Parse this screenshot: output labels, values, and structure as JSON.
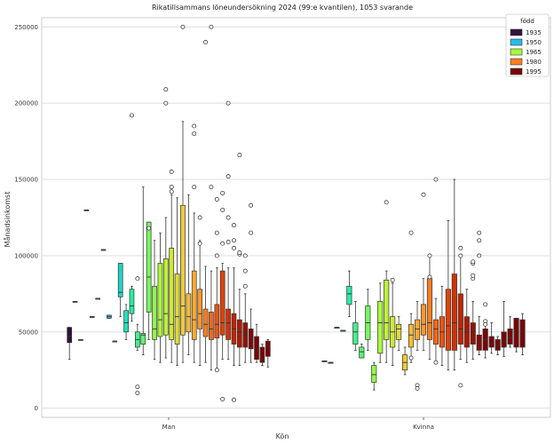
{
  "chart_data": {
    "type": "box",
    "title": "Rikatillsammans löneundersökning 2024 (99:e kvantilen), 1053 svarande",
    "xlabel": "Kön",
    "ylabel": "Månadsinkomst",
    "categories": [
      "Man",
      "Kvinna"
    ],
    "ylim": [
      -6000,
      256000
    ],
    "yticks": [
      0,
      50000,
      100000,
      150000,
      200000,
      250000
    ],
    "grid": "horizontal",
    "legend": {
      "title": "född",
      "position": "top-right",
      "entries": [
        {
          "label": "1935",
          "color": "#30123b"
        },
        {
          "label": "1950",
          "color": "#28bceb"
        },
        {
          "label": "1965",
          "color": "#a4fc3c"
        },
        {
          "label": "1980",
          "color": "#fb8022"
        },
        {
          "label": "1995",
          "color": "#7a0403"
        }
      ]
    },
    "color_ramp": [
      "#30123b",
      "#4145ab",
      "#4675ed",
      "#39a2fc",
      "#1bcfd4",
      "#24eca6",
      "#61fc6c",
      "#a4fc3c",
      "#d1e834",
      "#f3c63a",
      "#fe9b2d",
      "#f36315",
      "#d93806",
      "#b11901",
      "#7a0403"
    ],
    "series": [
      {
        "name": "Man",
        "groups": [
          {
            "c": 0.0,
            "q1": 43000,
            "med": 47000,
            "q3": 53000,
            "wlo": 32000,
            "whi": 53000,
            "out": []
          },
          {
            "c": 0.07,
            "q1": 70000,
            "med": 70000,
            "q3": 70000,
            "wlo": 70000,
            "whi": 70000,
            "out": []
          },
          {
            "c": 0.1,
            "q1": 45000,
            "med": 45000,
            "q3": 45000,
            "wlo": 45000,
            "whi": 45000,
            "out": []
          },
          {
            "c": 0.13,
            "q1": 130000,
            "med": 130000,
            "q3": 130000,
            "wlo": 130000,
            "whi": 130000,
            "out": []
          },
          {
            "c": 0.16,
            "q1": 60000,
            "med": 60000,
            "q3": 60000,
            "wlo": 60000,
            "whi": 60000,
            "out": []
          },
          {
            "c": 0.19,
            "q1": 72000,
            "med": 72000,
            "q3": 72000,
            "wlo": 72000,
            "whi": 72000,
            "out": []
          },
          {
            "c": 0.21,
            "q1": 104000,
            "med": 104000,
            "q3": 104000,
            "wlo": 104000,
            "whi": 104000,
            "out": []
          },
          {
            "c": 0.24,
            "q1": 59000,
            "med": 60000,
            "q3": 61000,
            "wlo": 59000,
            "whi": 61000,
            "out": []
          },
          {
            "c": 0.27,
            "q1": 44000,
            "med": 44000,
            "q3": 44000,
            "wlo": 44000,
            "whi": 44000,
            "out": []
          },
          {
            "c": 0.3,
            "q1": 73000,
            "med": 76000,
            "q3": 95000,
            "wlo": 60000,
            "whi": 95000,
            "out": []
          },
          {
            "c": 0.33,
            "q1": 50000,
            "med": 56000,
            "q3": 64000,
            "wlo": 45000,
            "whi": 68000,
            "out": []
          },
          {
            "c": 0.36,
            "q1": 62000,
            "med": 67000,
            "q3": 78000,
            "wlo": 57000,
            "whi": 80000,
            "out": [
              192000
            ]
          },
          {
            "c": 0.39,
            "q1": 40000,
            "med": 45000,
            "q3": 50000,
            "wlo": 38000,
            "whi": 55000,
            "out": [
              14000,
              10000,
              85000
            ]
          },
          {
            "c": 0.42,
            "q1": 42000,
            "med": 48000,
            "q3": 49000,
            "wlo": 35000,
            "whi": 145000,
            "out": []
          },
          {
            "c": 0.45,
            "q1": 63000,
            "med": 86000,
            "q3": 122000,
            "wlo": 45000,
            "whi": 122000,
            "out": [
              118000
            ]
          },
          {
            "c": 0.48,
            "q1": 45000,
            "med": 52000,
            "q3": 80000,
            "wlo": 32000,
            "whi": 110000,
            "out": []
          },
          {
            "c": 0.51,
            "q1": 47000,
            "med": 58000,
            "q3": 95000,
            "wlo": 30000,
            "whi": 115000,
            "out": []
          },
          {
            "c": 0.54,
            "q1": 48000,
            "med": 62000,
            "q3": 98000,
            "wlo": 33000,
            "whi": 125000,
            "out": [
              200000,
              209000
            ]
          },
          {
            "c": 0.57,
            "q1": 45000,
            "med": 55000,
            "q3": 105000,
            "wlo": 30000,
            "whi": 140000,
            "out": [
              145000,
              155000,
              142000
            ]
          },
          {
            "c": 0.6,
            "q1": 42000,
            "med": 60000,
            "q3": 88000,
            "wlo": 28000,
            "whi": 138000,
            "out": []
          },
          {
            "c": 0.63,
            "q1": 48000,
            "med": 67000,
            "q3": 133000,
            "wlo": 30000,
            "whi": 188000,
            "out": [
              250000
            ]
          },
          {
            "c": 0.66,
            "q1": 50000,
            "med": 60000,
            "q3": 75000,
            "wlo": 35000,
            "whi": 140000,
            "out": []
          },
          {
            "c": 0.69,
            "q1": 45000,
            "med": 58000,
            "q3": 90000,
            "wlo": 30000,
            "whi": 128000,
            "out": [
              185000,
              180000,
              145000
            ]
          },
          {
            "c": 0.72,
            "q1": 52000,
            "med": 62000,
            "q3": 78000,
            "wlo": 28000,
            "whi": 110000,
            "out": [
              125000,
              108000
            ]
          },
          {
            "c": 0.75,
            "q1": 47000,
            "med": 55000,
            "q3": 65000,
            "wlo": 30000,
            "whi": 93000,
            "out": [
              240000
            ]
          },
          {
            "c": 0.78,
            "q1": 45000,
            "med": 52000,
            "q3": 63000,
            "wlo": 25000,
            "whi": 90000,
            "out": [
              250000,
              145000
            ]
          },
          {
            "c": 0.81,
            "q1": 46000,
            "med": 55000,
            "q3": 68000,
            "wlo": 25000,
            "whi": 92000,
            "out": [
              137000,
              115000,
              100000,
              25000
            ]
          },
          {
            "c": 0.84,
            "q1": 48000,
            "med": 56000,
            "q3": 90000,
            "wlo": 32000,
            "whi": 95000,
            "out": [
              141000,
              130000,
              108000,
              6000
            ]
          },
          {
            "c": 0.87,
            "q1": 45000,
            "med": 56000,
            "q3": 65000,
            "wlo": 32000,
            "whi": 92000,
            "out": [
              125000,
              109000,
              200000,
              152000
            ]
          },
          {
            "c": 0.9,
            "q1": 42000,
            "med": 52000,
            "q3": 62000,
            "wlo": 28000,
            "whi": 92000,
            "out": [
              120000,
              110000,
              105000,
              5500
            ]
          },
          {
            "c": 0.93,
            "q1": 40000,
            "med": 50000,
            "q3": 58000,
            "wlo": 28000,
            "whi": 78000,
            "out": [
              101000,
              166000,
              102000
            ]
          },
          {
            "c": 0.96,
            "q1": 40000,
            "med": 48000,
            "q3": 56000,
            "wlo": 30000,
            "whi": 75000,
            "out": [
              80000,
              100000,
              90000
            ]
          },
          {
            "c": 0.99,
            "q1": 39000,
            "med": 46000,
            "q3": 52000,
            "wlo": 30000,
            "whi": 65000,
            "out": [
              133000,
              115000
            ]
          },
          {
            "c": 1.0,
            "q1": 32000,
            "med": 39000,
            "q3": 47000,
            "wlo": 30000,
            "whi": 55000,
            "out": []
          },
          {
            "c": 1.0,
            "q1": 30000,
            "med": 32000,
            "q3": 40000,
            "wlo": 28000,
            "whi": 42000,
            "out": []
          },
          {
            "c": 1.0,
            "q1": 34000,
            "med": 40000,
            "q3": 44000,
            "wlo": 27000,
            "whi": 45000,
            "out": []
          }
        ]
      },
      {
        "name": "Kvinna",
        "groups": [
          {
            "c": 0.06,
            "q1": 31000,
            "med": 31000,
            "q3": 31000,
            "wlo": 31000,
            "whi": 31000,
            "out": []
          },
          {
            "c": 0.12,
            "q1": 30000,
            "med": 30000,
            "q3": 30000,
            "wlo": 30000,
            "whi": 30000,
            "out": []
          },
          {
            "c": 0.3,
            "q1": 53000,
            "med": 53000,
            "q3": 53000,
            "wlo": 53000,
            "whi": 53000,
            "out": []
          },
          {
            "c": 0.33,
            "q1": 51000,
            "med": 51000,
            "q3": 51000,
            "wlo": 51000,
            "whi": 51000,
            "out": []
          },
          {
            "c": 0.36,
            "q1": 68000,
            "med": 75000,
            "q3": 80000,
            "wlo": 60000,
            "whi": 90000,
            "out": []
          },
          {
            "c": 0.39,
            "q1": 42000,
            "med": 50000,
            "q3": 56000,
            "wlo": 38000,
            "whi": 70000,
            "out": []
          },
          {
            "c": 0.42,
            "q1": 33000,
            "med": 37000,
            "q3": 40000,
            "wlo": 33000,
            "whi": 42000,
            "out": []
          },
          {
            "c": 0.45,
            "q1": 45000,
            "med": 56000,
            "q3": 67000,
            "wlo": 38000,
            "whi": 78000,
            "out": []
          },
          {
            "c": 0.48,
            "q1": 17000,
            "med": 22000,
            "q3": 28000,
            "wlo": 12000,
            "whi": 30000,
            "out": []
          },
          {
            "c": 0.51,
            "q1": 36000,
            "med": 56000,
            "q3": 70000,
            "wlo": 30000,
            "whi": 82000,
            "out": []
          },
          {
            "c": 0.54,
            "q1": 45000,
            "med": 56000,
            "q3": 84000,
            "wlo": 30000,
            "whi": 90000,
            "out": [
              135000
            ]
          },
          {
            "c": 0.57,
            "q1": 40000,
            "med": 50000,
            "q3": 60000,
            "wlo": 28000,
            "whi": 82000,
            "out": [
              84000
            ]
          },
          {
            "c": 0.6,
            "q1": 45000,
            "med": 52000,
            "q3": 55000,
            "wlo": 38000,
            "whi": 60000,
            "out": []
          },
          {
            "c": 0.63,
            "q1": 25000,
            "med": 30000,
            "q3": 35000,
            "wlo": 22000,
            "whi": 40000,
            "out": []
          },
          {
            "c": 0.66,
            "q1": 40000,
            "med": 48000,
            "q3": 55000,
            "wlo": 30000,
            "whi": 62000,
            "out": [
              115000,
              33000
            ]
          },
          {
            "c": 0.69,
            "q1": 45000,
            "med": 52000,
            "q3": 58000,
            "wlo": 38000,
            "whi": 70000,
            "out": [
              15000,
              13000
            ]
          },
          {
            "c": 0.72,
            "q1": 48000,
            "med": 55000,
            "q3": 68000,
            "wlo": 38000,
            "whi": 85000,
            "out": [
              140000
            ]
          },
          {
            "c": 0.75,
            "q1": 45000,
            "med": 56000,
            "q3": 85000,
            "wlo": 32000,
            "whi": 100000,
            "out": [
              100000,
              86000
            ]
          },
          {
            "c": 0.78,
            "q1": 42000,
            "med": 52000,
            "q3": 58000,
            "wlo": 30000,
            "whi": 72000,
            "out": [
              150000,
              30000
            ]
          },
          {
            "c": 0.81,
            "q1": 40000,
            "med": 50000,
            "q3": 60000,
            "wlo": 28000,
            "whi": 80000,
            "out": []
          },
          {
            "c": 0.84,
            "q1": 38000,
            "med": 54000,
            "q3": 78000,
            "wlo": 25000,
            "whi": 123000,
            "out": []
          },
          {
            "c": 0.87,
            "q1": 38000,
            "med": 56000,
            "q3": 88000,
            "wlo": 25000,
            "whi": 150000,
            "out": []
          },
          {
            "c": 0.9,
            "q1": 42000,
            "med": 52000,
            "q3": 75000,
            "wlo": 32000,
            "whi": 100000,
            "out": [
              105000,
              100000,
              15000
            ]
          },
          {
            "c": 0.93,
            "q1": 40000,
            "med": 50000,
            "q3": 60000,
            "wlo": 30000,
            "whi": 78000,
            "out": []
          },
          {
            "c": 0.96,
            "q1": 42000,
            "med": 50000,
            "q3": 56000,
            "wlo": 32000,
            "whi": 70000,
            "out": [
              95000,
              96000,
              85000,
              87000
            ]
          },
          {
            "c": 0.98,
            "q1": 38000,
            "med": 44000,
            "q3": 48000,
            "wlo": 35000,
            "whi": 60000,
            "out": [
              110000,
              115000,
              100000
            ]
          },
          {
            "c": 1.0,
            "q1": 38000,
            "med": 45000,
            "q3": 52000,
            "wlo": 33000,
            "whi": 57000,
            "out": [
              57000,
              55000,
              68000
            ]
          },
          {
            "c": 1.0,
            "q1": 40000,
            "med": 43000,
            "q3": 47000,
            "wlo": 36000,
            "whi": 56000,
            "out": []
          },
          {
            "c": 1.0,
            "q1": 38000,
            "med": 41000,
            "q3": 45000,
            "wlo": 35000,
            "whi": 47000,
            "out": []
          },
          {
            "c": 1.0,
            "q1": 40000,
            "med": 44000,
            "q3": 50000,
            "wlo": 34000,
            "whi": 70000,
            "out": []
          },
          {
            "c": 1.0,
            "q1": 42000,
            "med": 46000,
            "q3": 52000,
            "wlo": 40000,
            "whi": 60000,
            "out": []
          },
          {
            "c": 1.0,
            "q1": 40000,
            "med": 50000,
            "q3": 59000,
            "wlo": 37000,
            "whi": 59000,
            "out": []
          },
          {
            "c": 1.0,
            "q1": 40000,
            "med": 50000,
            "q3": 58000,
            "wlo": 35000,
            "whi": 62000,
            "out": []
          }
        ]
      }
    ]
  }
}
